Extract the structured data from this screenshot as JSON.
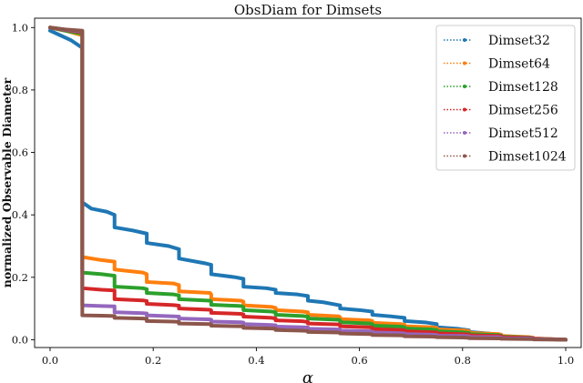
{
  "chart_data": {
    "type": "line",
    "title": "ObsDiam for Dimsets",
    "xlabel": "α",
    "ylabel": "normalized Observable Diameter",
    "xlim": [
      -0.03,
      1.03
    ],
    "ylim": [
      -0.025,
      1.03
    ],
    "xticks": [
      0.0,
      0.2,
      0.4,
      0.6,
      0.8,
      1.0
    ],
    "xtick_labels": [
      "0.0",
      "0.2",
      "0.4",
      "0.6",
      "0.8",
      "1.0"
    ],
    "yticks": [
      0.0,
      0.2,
      0.4,
      0.6,
      0.8,
      1.0
    ],
    "ytick_labels": [
      "0.0",
      "0.2",
      "0.4",
      "0.6",
      "0.8",
      "1.0"
    ],
    "grid": false,
    "legend_position": "top-right",
    "series": [
      {
        "name": "Dimset32",
        "color": "#1f77b4",
        "x": [
          0.0,
          0.02,
          0.04,
          0.0625,
          0.0625,
          0.08,
          0.11,
          0.125,
          0.125,
          0.16,
          0.1875,
          0.1875,
          0.23,
          0.25,
          0.25,
          0.3,
          0.3125,
          0.3125,
          0.36,
          0.375,
          0.375,
          0.42,
          0.4375,
          0.4375,
          0.48,
          0.5,
          0.5,
          0.53,
          0.5625,
          0.5625,
          0.6,
          0.625,
          0.625,
          0.66,
          0.6875,
          0.6875,
          0.73,
          0.75,
          0.75,
          0.79,
          0.8125,
          0.8125,
          0.85,
          0.875,
          0.875,
          0.91,
          0.9375,
          0.9375,
          0.97,
          1.0
        ],
        "y": [
          0.99,
          0.975,
          0.96,
          0.935,
          0.44,
          0.42,
          0.41,
          0.4,
          0.36,
          0.35,
          0.34,
          0.31,
          0.3,
          0.29,
          0.26,
          0.245,
          0.24,
          0.21,
          0.2,
          0.195,
          0.17,
          0.165,
          0.16,
          0.15,
          0.145,
          0.14,
          0.125,
          0.12,
          0.11,
          0.1,
          0.095,
          0.09,
          0.08,
          0.075,
          0.07,
          0.06,
          0.055,
          0.05,
          0.04,
          0.035,
          0.03,
          0.025,
          0.02,
          0.015,
          0.012,
          0.008,
          0.005,
          0.004,
          0.002,
          0.0
        ]
      },
      {
        "name": "Dimset64",
        "color": "#ff7f0e",
        "x": [
          0.0,
          0.03,
          0.0625,
          0.0625,
          0.1,
          0.125,
          0.125,
          0.18,
          0.1875,
          0.1875,
          0.24,
          0.25,
          0.25,
          0.31,
          0.3125,
          0.3125,
          0.37,
          0.375,
          0.375,
          0.43,
          0.4375,
          0.4375,
          0.49,
          0.5,
          0.5,
          0.56,
          0.5625,
          0.5625,
          0.62,
          0.625,
          0.625,
          0.68,
          0.6875,
          0.6875,
          0.74,
          0.75,
          0.75,
          0.8,
          0.8125,
          0.8125,
          0.87,
          0.875,
          0.875,
          0.93,
          0.9375,
          0.9375,
          1.0
        ],
        "y": [
          1.0,
          0.99,
          0.975,
          0.265,
          0.255,
          0.25,
          0.225,
          0.215,
          0.21,
          0.185,
          0.18,
          0.175,
          0.155,
          0.15,
          0.145,
          0.13,
          0.125,
          0.122,
          0.11,
          0.105,
          0.102,
          0.095,
          0.09,
          0.088,
          0.08,
          0.075,
          0.072,
          0.066,
          0.062,
          0.06,
          0.054,
          0.05,
          0.048,
          0.043,
          0.04,
          0.038,
          0.033,
          0.03,
          0.028,
          0.022,
          0.018,
          0.016,
          0.012,
          0.008,
          0.006,
          0.004,
          0.0
        ]
      },
      {
        "name": "Dimset128",
        "color": "#2ca02c",
        "x": [
          0.0,
          0.03,
          0.0625,
          0.0625,
          0.1,
          0.125,
          0.125,
          0.18,
          0.1875,
          0.1875,
          0.24,
          0.25,
          0.25,
          0.31,
          0.3125,
          0.3125,
          0.37,
          0.375,
          0.375,
          0.43,
          0.4375,
          0.4375,
          0.49,
          0.5,
          0.5,
          0.56,
          0.5625,
          0.5625,
          0.62,
          0.625,
          0.625,
          0.68,
          0.6875,
          0.6875,
          0.74,
          0.75,
          0.75,
          0.8,
          0.8125,
          0.8125,
          0.87,
          0.875,
          0.875,
          0.93,
          0.9375,
          0.9375,
          1.0
        ],
        "y": [
          1.0,
          0.99,
          0.98,
          0.215,
          0.21,
          0.205,
          0.17,
          0.165,
          0.162,
          0.15,
          0.145,
          0.142,
          0.13,
          0.125,
          0.122,
          0.112,
          0.108,
          0.105,
          0.095,
          0.09,
          0.088,
          0.08,
          0.076,
          0.074,
          0.068,
          0.064,
          0.062,
          0.056,
          0.052,
          0.05,
          0.045,
          0.042,
          0.04,
          0.036,
          0.033,
          0.031,
          0.027,
          0.024,
          0.022,
          0.018,
          0.015,
          0.013,
          0.01,
          0.007,
          0.005,
          0.003,
          0.0
        ]
      },
      {
        "name": "Dimset256",
        "color": "#d62728",
        "x": [
          0.0,
          0.03,
          0.0625,
          0.0625,
          0.1,
          0.125,
          0.125,
          0.18,
          0.1875,
          0.1875,
          0.24,
          0.25,
          0.25,
          0.31,
          0.3125,
          0.3125,
          0.37,
          0.375,
          0.375,
          0.43,
          0.4375,
          0.4375,
          0.49,
          0.5,
          0.5,
          0.56,
          0.5625,
          0.5625,
          0.62,
          0.625,
          0.625,
          0.68,
          0.6875,
          0.6875,
          0.74,
          0.75,
          0.75,
          0.8,
          0.8125,
          0.8125,
          0.87,
          0.875,
          0.875,
          0.93,
          0.9375,
          0.9375,
          1.0
        ],
        "y": [
          1.0,
          0.992,
          0.985,
          0.165,
          0.16,
          0.158,
          0.13,
          0.126,
          0.124,
          0.115,
          0.111,
          0.109,
          0.1,
          0.096,
          0.094,
          0.086,
          0.083,
          0.081,
          0.074,
          0.07,
          0.068,
          0.062,
          0.059,
          0.057,
          0.052,
          0.049,
          0.047,
          0.043,
          0.04,
          0.038,
          0.034,
          0.031,
          0.03,
          0.027,
          0.024,
          0.023,
          0.02,
          0.018,
          0.017,
          0.014,
          0.012,
          0.011,
          0.008,
          0.006,
          0.005,
          0.003,
          0.0
        ]
      },
      {
        "name": "Dimset512",
        "color": "#9467bd",
        "x": [
          0.0,
          0.03,
          0.0625,
          0.0625,
          0.1,
          0.125,
          0.125,
          0.18,
          0.1875,
          0.1875,
          0.24,
          0.25,
          0.25,
          0.31,
          0.3125,
          0.3125,
          0.37,
          0.375,
          0.375,
          0.43,
          0.4375,
          0.4375,
          0.49,
          0.5,
          0.5,
          0.56,
          0.5625,
          0.5625,
          0.62,
          0.625,
          0.625,
          0.68,
          0.6875,
          0.6875,
          0.74,
          0.75,
          0.75,
          0.8,
          0.8125,
          0.8125,
          0.87,
          0.875,
          0.875,
          0.93,
          0.9375,
          0.9375,
          1.0
        ],
        "y": [
          1.0,
          0.993,
          0.988,
          0.11,
          0.108,
          0.107,
          0.088,
          0.085,
          0.084,
          0.078,
          0.075,
          0.074,
          0.068,
          0.065,
          0.064,
          0.058,
          0.056,
          0.055,
          0.05,
          0.047,
          0.046,
          0.042,
          0.04,
          0.039,
          0.035,
          0.033,
          0.032,
          0.029,
          0.027,
          0.026,
          0.023,
          0.021,
          0.02,
          0.018,
          0.016,
          0.015,
          0.013,
          0.012,
          0.011,
          0.009,
          0.008,
          0.007,
          0.005,
          0.004,
          0.003,
          0.002,
          0.0
        ]
      },
      {
        "name": "Dimset1024",
        "color": "#8c564b",
        "x": [
          0.0,
          0.03,
          0.0625,
          0.0625,
          0.1,
          0.125,
          0.125,
          0.18,
          0.1875,
          0.1875,
          0.24,
          0.25,
          0.25,
          0.31,
          0.3125,
          0.3125,
          0.37,
          0.375,
          0.375,
          0.43,
          0.4375,
          0.4375,
          0.49,
          0.5,
          0.5,
          0.56,
          0.5625,
          0.5625,
          0.62,
          0.625,
          0.625,
          0.68,
          0.6875,
          0.6875,
          0.74,
          0.75,
          0.75,
          0.8,
          0.8125,
          0.8125,
          0.87,
          0.875,
          0.875,
          0.93,
          0.9375,
          0.9375,
          1.0
        ],
        "y": [
          1.0,
          0.994,
          0.99,
          0.078,
          0.077,
          0.076,
          0.07,
          0.068,
          0.067,
          0.06,
          0.058,
          0.057,
          0.052,
          0.05,
          0.049,
          0.045,
          0.043,
          0.042,
          0.038,
          0.036,
          0.035,
          0.031,
          0.029,
          0.028,
          0.025,
          0.023,
          0.022,
          0.02,
          0.018,
          0.017,
          0.015,
          0.014,
          0.013,
          0.011,
          0.01,
          0.009,
          0.008,
          0.007,
          0.006,
          0.005,
          0.004,
          0.004,
          0.003,
          0.002,
          0.002,
          0.001,
          0.0
        ]
      }
    ]
  }
}
